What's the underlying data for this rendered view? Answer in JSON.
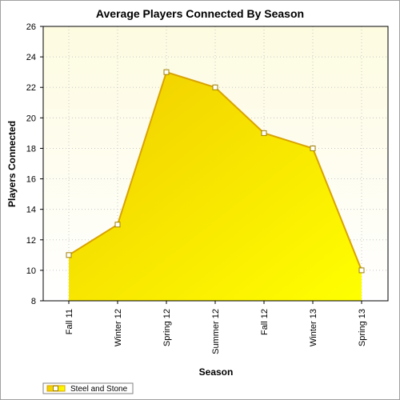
{
  "colors": {
    "plot_bg_top": "#fdfbe0",
    "plot_bg_bottom": "#ffffff",
    "area_fill_light": "#ffff00",
    "area_fill_dark": "#f0cc00",
    "line": "#d9a300",
    "marker_fill": "#ffffff",
    "grid": "#c8c8c8"
  },
  "chart_data": {
    "type": "area",
    "title": "Average Players Connected By Season",
    "xlabel": "Season",
    "ylabel": "Players Connected",
    "categories": [
      "Fall 11",
      "Winter 12",
      "Spring 12",
      "Summer 12",
      "Fall 12",
      "Winter 13",
      "Spring 13"
    ],
    "series": [
      {
        "name": "Steel and Stone",
        "values": [
          11,
          13,
          23,
          22,
          19,
          18,
          10
        ]
      }
    ],
    "ylim": [
      8,
      26
    ],
    "yticks": [
      8,
      10,
      12,
      14,
      16,
      18,
      20,
      22,
      24,
      26
    ],
    "grid": true,
    "legend_position": "bottom-left"
  }
}
